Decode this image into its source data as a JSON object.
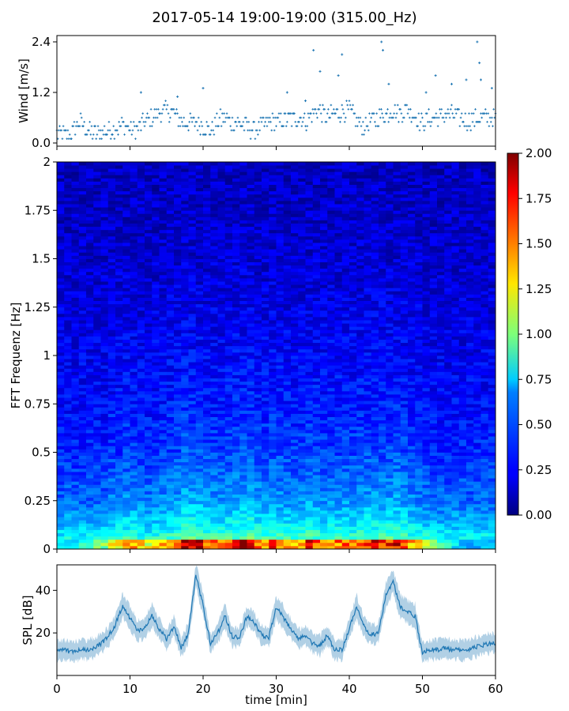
{
  "title": "2017-05-14 19:00-19:00 (315.00_Hz)",
  "chart_data": [
    {
      "id": "wind",
      "type": "scatter",
      "ylabel": "Wind [m/s]",
      "xlim": [
        0,
        60
      ],
      "ylim": [
        0,
        2.4
      ],
      "yticks": [
        0.0,
        1.2,
        2.4
      ],
      "ytick_labels": [
        "0.0",
        "1.2",
        "2.4"
      ],
      "color": "#1f77b4",
      "sample_step_min": 0.125,
      "series": [
        {
          "name": "baseline",
          "x": [
            0,
            2,
            3,
            5,
            7,
            9,
            11,
            12,
            14,
            15,
            16,
            17,
            19,
            21,
            22,
            23,
            24,
            26,
            27,
            29,
            30,
            33,
            34,
            35,
            36,
            37,
            38,
            40,
            41,
            42,
            43,
            44,
            46,
            47,
            48,
            49,
            50,
            52,
            54,
            55,
            56,
            58,
            60
          ],
          "y": [
            0.2,
            0.2,
            0.5,
            0.2,
            0.3,
            0.4,
            0.3,
            0.5,
            0.7,
            0.8,
            0.7,
            0.5,
            0.5,
            0.3,
            0.5,
            0.6,
            0.5,
            0.4,
            0.3,
            0.5,
            0.5,
            0.6,
            0.5,
            0.7,
            0.8,
            0.6,
            0.7,
            0.8,
            0.5,
            0.4,
            0.5,
            0.6,
            0.8,
            0.7,
            0.8,
            0.6,
            0.5,
            0.6,
            0.7,
            0.6,
            0.5,
            0.6,
            0.6
          ]
        },
        {
          "name": "spikes",
          "x": [
            11.5,
            16.5,
            20.0,
            31.5,
            34.0,
            35.1,
            36.0,
            38.5,
            39.0,
            44.4,
            44.6,
            45.4,
            50.5,
            51.8,
            54.0,
            56.0,
            57.5,
            57.8,
            58.0,
            59.5
          ],
          "y": [
            1.2,
            1.1,
            1.3,
            1.2,
            1.0,
            2.2,
            1.7,
            1.6,
            2.1,
            2.4,
            2.2,
            1.4,
            1.2,
            1.6,
            1.4,
            1.5,
            2.4,
            1.9,
            1.5,
            1.3
          ]
        }
      ]
    },
    {
      "id": "spectrogram",
      "type": "heatmap",
      "ylabel": "FFT Frequenz [Hz]",
      "xlim": [
        0,
        60
      ],
      "ylim": [
        0,
        2
      ],
      "yticks": [
        0,
        0.25,
        0.5,
        0.75,
        1,
        1.25,
        1.5,
        1.75,
        2
      ],
      "ytick_labels": [
        "0",
        "0.25",
        "0.5",
        "0.75",
        "1",
        "1.25",
        "1.5",
        "1.75",
        "2"
      ],
      "colormap": "jet",
      "clim": [
        0,
        2
      ],
      "colorbar_ticks": [
        0,
        0.25,
        0.5,
        0.75,
        1,
        1.25,
        1.5,
        1.75,
        2
      ],
      "colorbar_labels": [
        "0.00",
        "0.25",
        "0.50",
        "0.75",
        "1.00",
        "1.25",
        "1.50",
        "1.75",
        "2.00"
      ],
      "n_time_bins": 60,
      "n_freq_bins": 120,
      "low_freq_band_hz": [
        0,
        0.05
      ],
      "low_freq_band_amplitude": [
        0.7,
        0.7,
        0.7,
        0.8,
        0.8,
        1.0,
        1.0,
        1.3,
        1.3,
        1.5,
        1.4,
        1.3,
        1.2,
        1.3,
        1.4,
        1.5,
        1.6,
        2.0,
        1.9,
        1.8,
        1.6,
        1.6,
        1.5,
        1.6,
        1.7,
        1.8,
        1.9,
        1.6,
        1.5,
        1.7,
        1.6,
        1.5,
        1.4,
        1.5,
        1.7,
        1.6,
        1.4,
        1.5,
        1.5,
        1.6,
        1.5,
        1.6,
        1.7,
        1.7,
        1.6,
        1.7,
        1.8,
        1.6,
        1.4,
        1.3,
        1.2,
        1.1,
        0.9,
        0.8,
        0.7,
        0.6,
        0.6,
        0.6,
        0.6,
        0.6
      ],
      "amplitude_profile_by_freq_hz": {
        "f": [
          0,
          0.1,
          0.25,
          0.5,
          0.75,
          1.0,
          1.5,
          2.0
        ],
        "amp": [
          0.9,
          0.65,
          0.45,
          0.32,
          0.26,
          0.22,
          0.15,
          0.12
        ]
      }
    },
    {
      "id": "spl",
      "type": "line",
      "ylabel": "SPL [dB]",
      "xlabel": "time [min]",
      "xlim": [
        0,
        60
      ],
      "ylim": [
        0,
        52
      ],
      "yticks": [
        20,
        40
      ],
      "ytick_labels": [
        "20",
        "40"
      ],
      "xticks": [
        0,
        10,
        20,
        30,
        40,
        50,
        60
      ],
      "xtick_labels": [
        "0",
        "10",
        "20",
        "30",
        "40",
        "50",
        "60"
      ],
      "color": "#1f77b4",
      "x": [
        0,
        1,
        2,
        3,
        4,
        5,
        6,
        7,
        8,
        9,
        10,
        11,
        12,
        13,
        14,
        15,
        16,
        17,
        18,
        19,
        20,
        21,
        22,
        23,
        24,
        25,
        26,
        27,
        28,
        29,
        30,
        31,
        32,
        33,
        34,
        35,
        36,
        37,
        38,
        39,
        40,
        41,
        42,
        43,
        44,
        45,
        46,
        47,
        48,
        49,
        50,
        51,
        52,
        53,
        54,
        55,
        56,
        57,
        58,
        59,
        60
      ],
      "y": [
        12,
        12,
        11,
        12,
        12,
        13,
        15,
        18,
        24,
        33,
        27,
        21,
        22,
        28,
        22,
        17,
        23,
        13,
        20,
        47,
        33,
        15,
        20,
        28,
        18,
        18,
        28,
        25,
        19,
        18,
        32,
        27,
        22,
        17,
        19,
        15,
        14,
        19,
        12,
        12,
        22,
        32,
        23,
        19,
        20,
        38,
        44,
        32,
        30,
        28,
        11,
        12,
        12,
        13,
        12,
        12,
        12,
        13,
        14,
        15,
        15
      ],
      "band": [
        3,
        3,
        3,
        3,
        3,
        3,
        3,
        3,
        3,
        4,
        4,
        3,
        3,
        4,
        3,
        3,
        3,
        3,
        3,
        4,
        4,
        3,
        3,
        4,
        3,
        3,
        3,
        3,
        3,
        3,
        4,
        4,
        3,
        3,
        3,
        3,
        3,
        3,
        3,
        3,
        3,
        4,
        3,
        3,
        3,
        4,
        4,
        4,
        4,
        4,
        3,
        3,
        3,
        3,
        3,
        3,
        3,
        3,
        3,
        3,
        3
      ]
    }
  ]
}
